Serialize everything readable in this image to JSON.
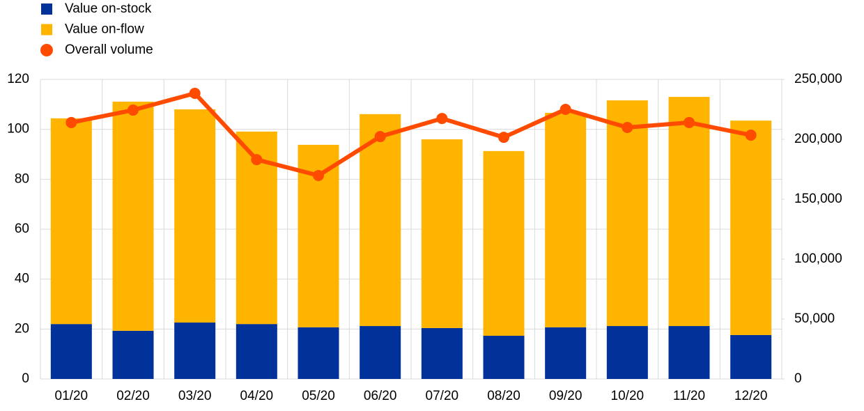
{
  "chart_data": {
    "type": "bar",
    "categories": [
      "01/20",
      "02/20",
      "03/20",
      "04/20",
      "05/20",
      "06/20",
      "07/20",
      "08/20",
      "09/20",
      "10/20",
      "11/20",
      "12/20"
    ],
    "series": [
      {
        "name": "Value on-stock",
        "color": "#003299",
        "values": [
          22.0,
          19.3,
          22.6,
          22.0,
          20.7,
          21.2,
          20.4,
          17.3,
          20.7,
          21.2,
          21.2,
          17.6
        ]
      },
      {
        "name": "Value on-flow",
        "color": "#ffb400",
        "values": [
          82.4,
          91.8,
          85.4,
          77.1,
          73.1,
          84.9,
          75.6,
          74.0,
          85.9,
          90.4,
          91.8,
          85.9
        ]
      },
      {
        "name": "Overall volume",
        "color": "#ff4b00",
        "type": "line",
        "axis": "y2",
        "values": [
          214000,
          224400,
          238400,
          183100,
          169800,
          202300,
          217400,
          201700,
          225000,
          209900,
          214000,
          203500
        ]
      }
    ],
    "stacked": true,
    "ylim": [
      0,
      120
    ],
    "yticks": [
      0,
      20,
      40,
      60,
      80,
      100,
      120
    ],
    "y2lim": [
      0,
      250000
    ],
    "y2ticks": [
      0,
      {
        "value": 50000,
        "label": "50,000"
      },
      {
        "value": 100000,
        "label": "100,000"
      },
      {
        "value": 150000,
        "label": "150,000"
      },
      {
        "value": 200000,
        "label": "200,000"
      },
      {
        "value": 250000,
        "label": "250,000"
      }
    ],
    "grid": true,
    "legend": "top-left"
  }
}
